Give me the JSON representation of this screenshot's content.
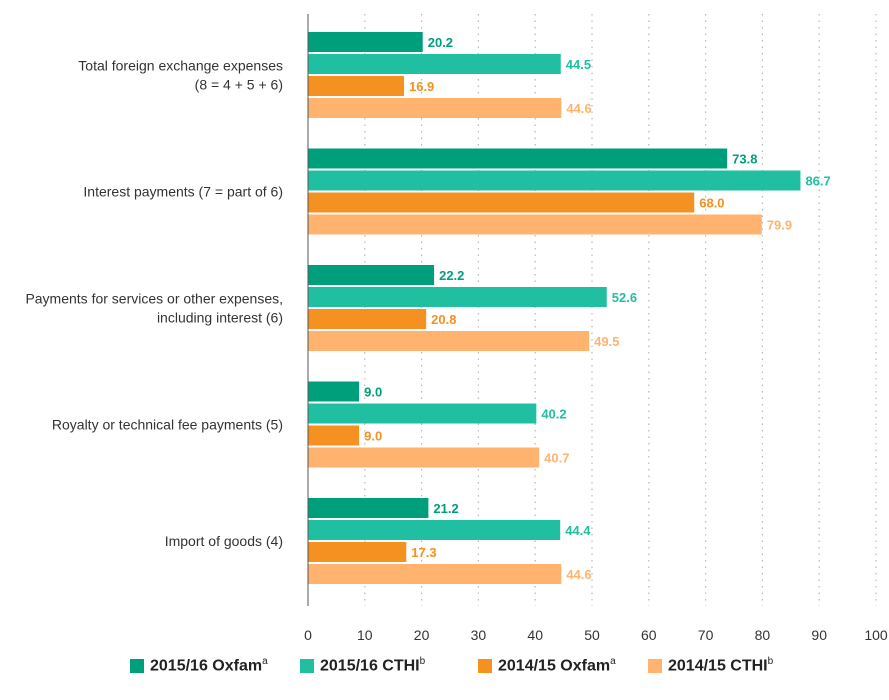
{
  "chart_data": {
    "type": "bar",
    "orientation": "horizontal",
    "categories": [
      [
        "Total foreign exchange expenses",
        "(8 = 4 + 5 + 6)"
      ],
      [
        "Interest payments (7 = part of 6)"
      ],
      [
        "Payments for services or other expenses,",
        "including interest (6)"
      ],
      [
        "Royalty or technical fee payments (5)"
      ],
      [
        "Import of goods (4)"
      ]
    ],
    "series": [
      {
        "name": "2015/16 Oxfam",
        "sup": "a",
        "color": "#009f7c",
        "label_color": "#009f7c",
        "values": [
          20.2,
          73.8,
          22.2,
          9.0,
          21.2
        ]
      },
      {
        "name": "2015/16 CTHI",
        "sup": "b",
        "color": "#21bfa1",
        "label_color": "#21bfa1",
        "values": [
          44.5,
          86.7,
          52.6,
          40.2,
          44.4
        ]
      },
      {
        "name": "2014/15 Oxfam",
        "sup": "a",
        "color": "#f59120",
        "label_color": "#f59120",
        "values": [
          16.9,
          68.0,
          20.8,
          9.0,
          17.3
        ]
      },
      {
        "name": "2014/15 CTHI",
        "sup": "b",
        "color": "#ffb36e",
        "label_color": "#ffb36e",
        "values": [
          44.6,
          79.9,
          49.5,
          40.7,
          44.6
        ]
      }
    ],
    "xlim": [
      0,
      100
    ],
    "xticks": [
      "0",
      "10",
      "20",
      "30",
      "40",
      "50",
      "60",
      "70",
      "80",
      "90",
      "100"
    ],
    "grid": "vertical-dotted",
    "legend_position": "bottom"
  }
}
